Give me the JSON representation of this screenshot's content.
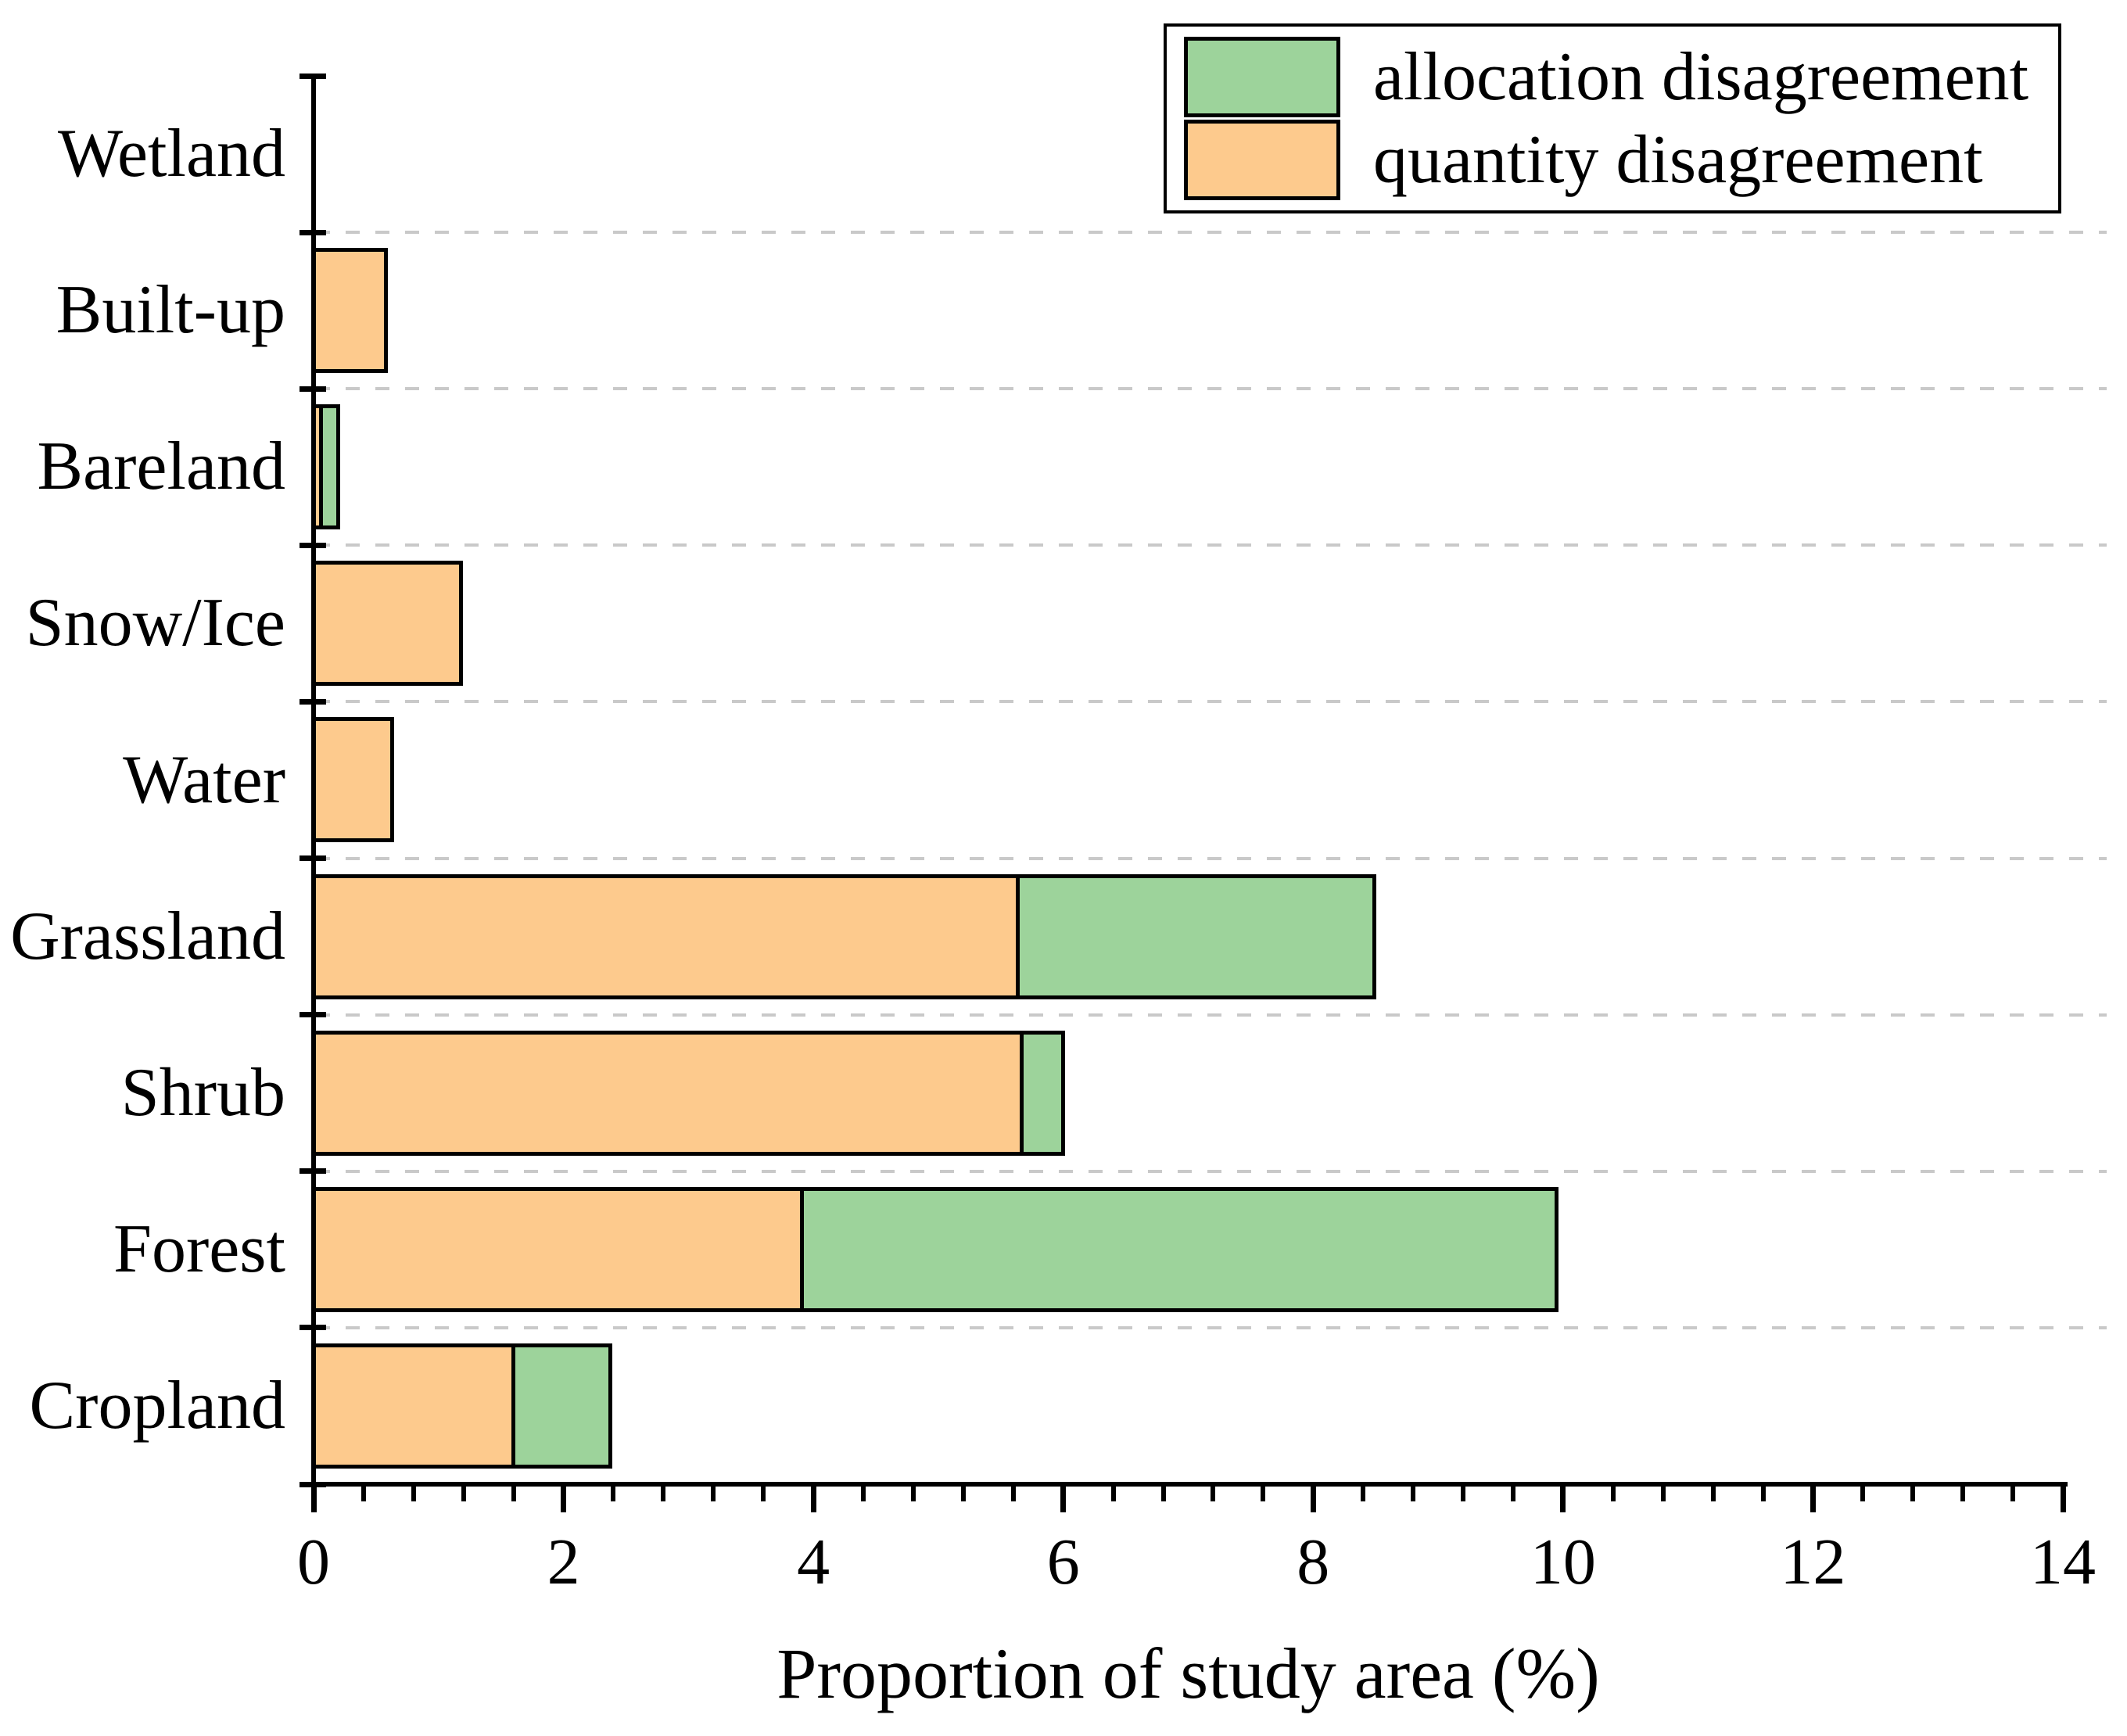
{
  "chart_data": {
    "type": "bar",
    "orientation": "horizontal",
    "stacked": true,
    "categories_top_to_bottom": [
      "Wetland",
      "Built-up",
      "Bareland",
      "Snow/Ice",
      "Water",
      "Grassland",
      "Shrub",
      "Forest",
      "Cropland"
    ],
    "series": [
      {
        "name": "quantity disagreement",
        "color": "#FDCA8D",
        "values": [
          0,
          0.58,
          0.06,
          1.18,
          0.63,
          5.64,
          5.67,
          3.91,
          1.6
        ]
      },
      {
        "name": "allocation disagreement",
        "color": "#9DD39B",
        "values": [
          0,
          0,
          0.14,
          0,
          0,
          2.85,
          0.33,
          6.04,
          0.78
        ]
      }
    ],
    "legend": [
      {
        "label": "allocation disagreement",
        "color": "#9DD39B"
      },
      {
        "label": "quantity disagreement",
        "color": "#FDCA8D"
      }
    ],
    "legend_position": "top-right",
    "xlabel": "Proportion of study area (%)",
    "ylabel": "",
    "xlim": [
      0,
      14
    ],
    "x_major_ticks": [
      0,
      2,
      4,
      6,
      8,
      10,
      12,
      14
    ],
    "x_minor_tick_step": 0.4,
    "x_tick_labels": [
      "0",
      "2",
      "4",
      "6",
      "8",
      "10",
      "12",
      "14"
    ],
    "grid": "horizontal-dashed",
    "grid_color": "#C9C9C9",
    "bar_border_color": "#000000",
    "axis_color": "#000000"
  }
}
